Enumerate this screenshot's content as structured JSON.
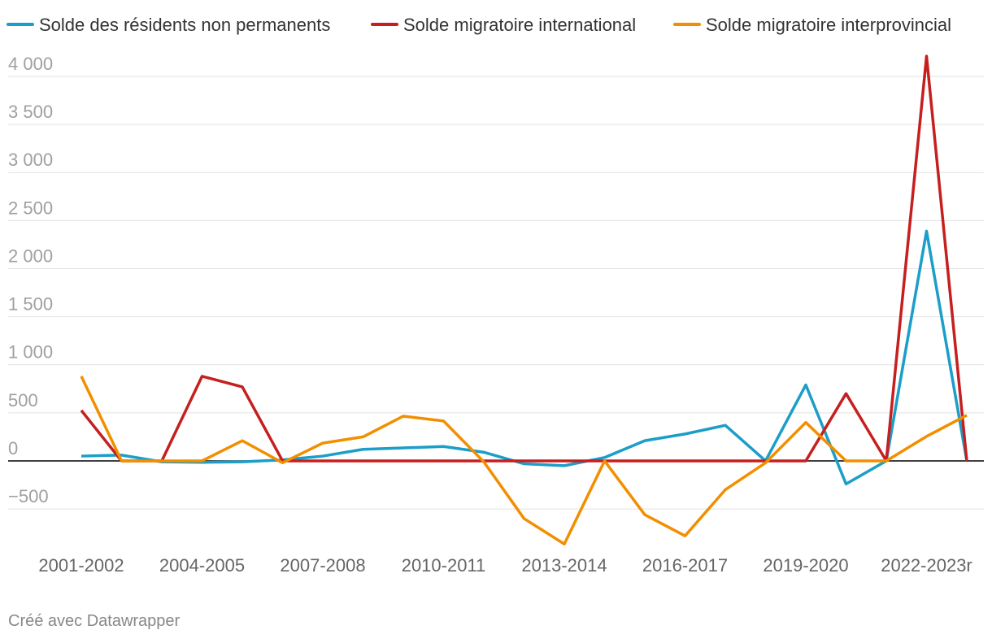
{
  "chart_data": {
    "type": "line",
    "categories": [
      "2001-2002",
      null,
      null,
      "2004-2005",
      null,
      null,
      "2007-2008",
      null,
      null,
      "2010-2011",
      null,
      null,
      "2013-2014",
      null,
      null,
      "2016-2017",
      null,
      null,
      "2019-2020",
      null,
      null,
      "2022-2023r",
      null
    ],
    "series": [
      {
        "name": "Solde des résidents non permanents",
        "color": "#1b9ec8",
        "values": [
          50,
          60,
          -10,
          -15,
          -10,
          10,
          50,
          120,
          135,
          150,
          90,
          -30,
          -50,
          35,
          210,
          280,
          370,
          0,
          790,
          -240,
          0,
          2390,
          0
        ]
      },
      {
        "name": "Solde migratoire international",
        "color": "#c5201f",
        "values": [
          525,
          0,
          0,
          880,
          770,
          0,
          0,
          0,
          0,
          0,
          0,
          0,
          0,
          0,
          0,
          0,
          0,
          0,
          0,
          700,
          0,
          4210,
          0
        ]
      },
      {
        "name": "Solde migratoire interprovincial",
        "color": "#f28f00",
        "values": [
          880,
          0,
          0,
          0,
          210,
          -20,
          185,
          250,
          465,
          415,
          -10,
          -600,
          -865,
          0,
          -560,
          -780,
          -300,
          -20,
          400,
          0,
          0,
          255,
          475
        ]
      }
    ],
    "ylim": [
      -900,
      4300
    ],
    "yticks": [
      {
        "value": -500,
        "label": "−500"
      },
      0,
      500,
      {
        "value": 1000,
        "label": "1 000"
      },
      {
        "value": 1500,
        "label": "1 500"
      },
      {
        "value": 2000,
        "label": "2 000"
      },
      {
        "value": 2500,
        "label": "2 500"
      },
      {
        "value": 3000,
        "label": "3 000"
      },
      {
        "value": 3500,
        "label": "3 500"
      },
      {
        "value": 4000,
        "label": "4 000"
      }
    ],
    "grid": true,
    "legend": "top",
    "footer": "Créé avec Datawrapper"
  }
}
